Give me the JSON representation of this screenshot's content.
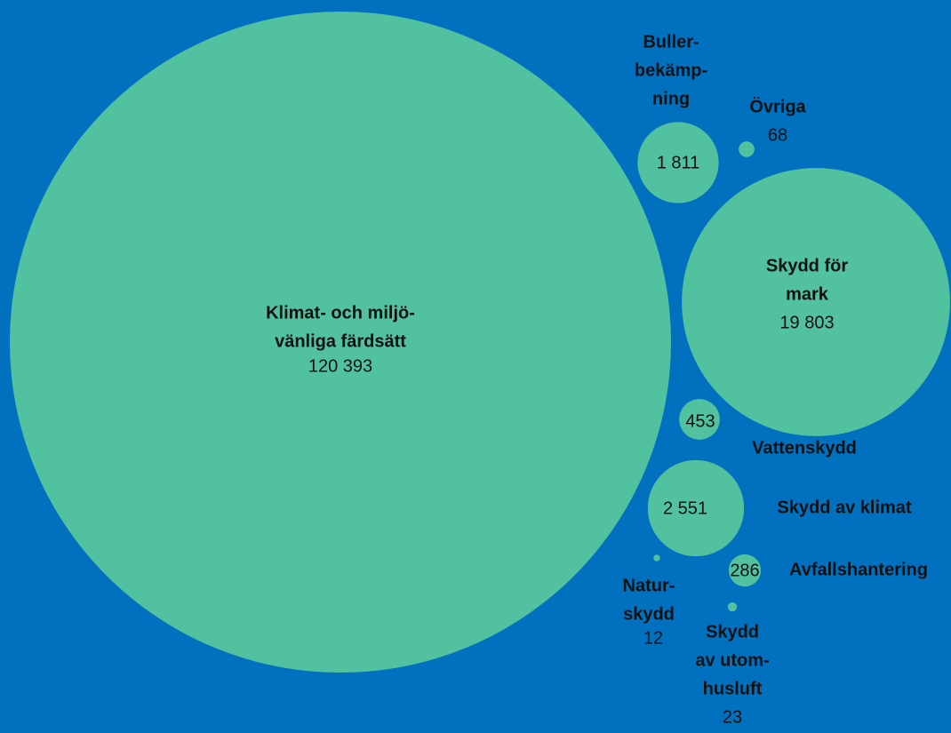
{
  "chart_data": {
    "type": "bubble",
    "color": "#52c1a0",
    "categories": [
      [
        "Klimat- och miljö-",
        "vänliga färdsätt"
      ],
      [
        "Skydd för",
        "mark"
      ],
      [
        "Buller-",
        "bekämp-",
        "ning"
      ],
      [
        "Övriga"
      ],
      [
        "Vattenskydd"
      ],
      [
        "Skydd av klimat"
      ],
      [
        "Avfallshantering"
      ],
      [
        "Natur-",
        "skydd"
      ],
      [
        "Skydd",
        "av utom-",
        "husluft"
      ]
    ],
    "values": [
      120393,
      19803,
      1811,
      68,
      453,
      2551,
      286,
      12,
      23
    ],
    "value_labels": [
      "120 393",
      "19 803",
      "1 811",
      "68",
      "453",
      "2 551",
      "286",
      "12",
      "23"
    ]
  }
}
